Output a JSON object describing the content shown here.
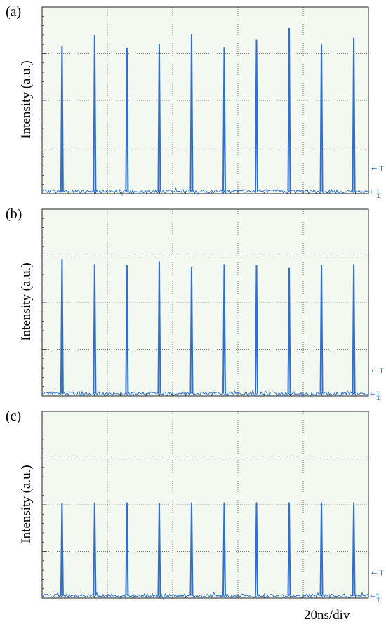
{
  "x_axis_label": "20ns/div",
  "colors": {
    "trace": "#2f6fd0",
    "screen": "#f3f9f1",
    "grid": "#555555",
    "marker": "#2f6fd0"
  },
  "marker_labels": {
    "trigger": "T",
    "channel": "1"
  },
  "chart_data": [
    {
      "type": "line",
      "panel": "(a)",
      "ylabel": "Intensity (a.u.)",
      "xlabel": "",
      "x_unit": "ns",
      "x_per_division": 20,
      "x_divisions": 5,
      "xlim": [
        0,
        100
      ],
      "y_divisions": 4,
      "ylim": [
        0,
        4
      ],
      "baseline": 0.05,
      "grid": true,
      "pulses": [
        {
          "x": 6.1,
          "y": 3.16
        },
        {
          "x": 16.1,
          "y": 3.4
        },
        {
          "x": 26.0,
          "y": 3.13
        },
        {
          "x": 35.9,
          "y": 3.22
        },
        {
          "x": 45.8,
          "y": 3.41
        },
        {
          "x": 55.8,
          "y": 3.14
        },
        {
          "x": 65.7,
          "y": 3.3
        },
        {
          "x": 75.7,
          "y": 3.55
        },
        {
          "x": 85.6,
          "y": 3.2
        },
        {
          "x": 95.5,
          "y": 3.34
        }
      ]
    },
    {
      "type": "line",
      "panel": "(b)",
      "ylabel": "Intensity (a.u.)",
      "xlabel": "",
      "x_unit": "ns",
      "x_per_division": 20,
      "x_divisions": 5,
      "xlim": [
        0,
        100
      ],
      "y_divisions": 4,
      "ylim": [
        0,
        4
      ],
      "baseline": 0.05,
      "grid": true,
      "pulses": [
        {
          "x": 6.1,
          "y": 2.93
        },
        {
          "x": 16.1,
          "y": 2.82
        },
        {
          "x": 26.0,
          "y": 2.8
        },
        {
          "x": 35.9,
          "y": 2.88
        },
        {
          "x": 45.8,
          "y": 2.75
        },
        {
          "x": 55.8,
          "y": 2.82
        },
        {
          "x": 65.7,
          "y": 2.8
        },
        {
          "x": 75.7,
          "y": 2.74
        },
        {
          "x": 85.6,
          "y": 2.8
        },
        {
          "x": 95.5,
          "y": 2.82
        }
      ]
    },
    {
      "type": "line",
      "panel": "(c)",
      "ylabel": "Intensity (a.u.)",
      "xlabel": "",
      "x_unit": "ns",
      "x_per_division": 20,
      "x_divisions": 5,
      "xlim": [
        0,
        100
      ],
      "y_divisions": 4,
      "ylim": [
        0,
        4
      ],
      "baseline": 0.05,
      "grid": true,
      "pulses": [
        {
          "x": 6.1,
          "y": 2.03
        },
        {
          "x": 16.1,
          "y": 2.05
        },
        {
          "x": 26.0,
          "y": 2.05
        },
        {
          "x": 35.9,
          "y": 2.04
        },
        {
          "x": 45.8,
          "y": 2.05
        },
        {
          "x": 55.8,
          "y": 2.05
        },
        {
          "x": 65.7,
          "y": 2.05
        },
        {
          "x": 75.7,
          "y": 2.05
        },
        {
          "x": 85.6,
          "y": 2.05
        },
        {
          "x": 95.5,
          "y": 2.05
        }
      ]
    }
  ]
}
